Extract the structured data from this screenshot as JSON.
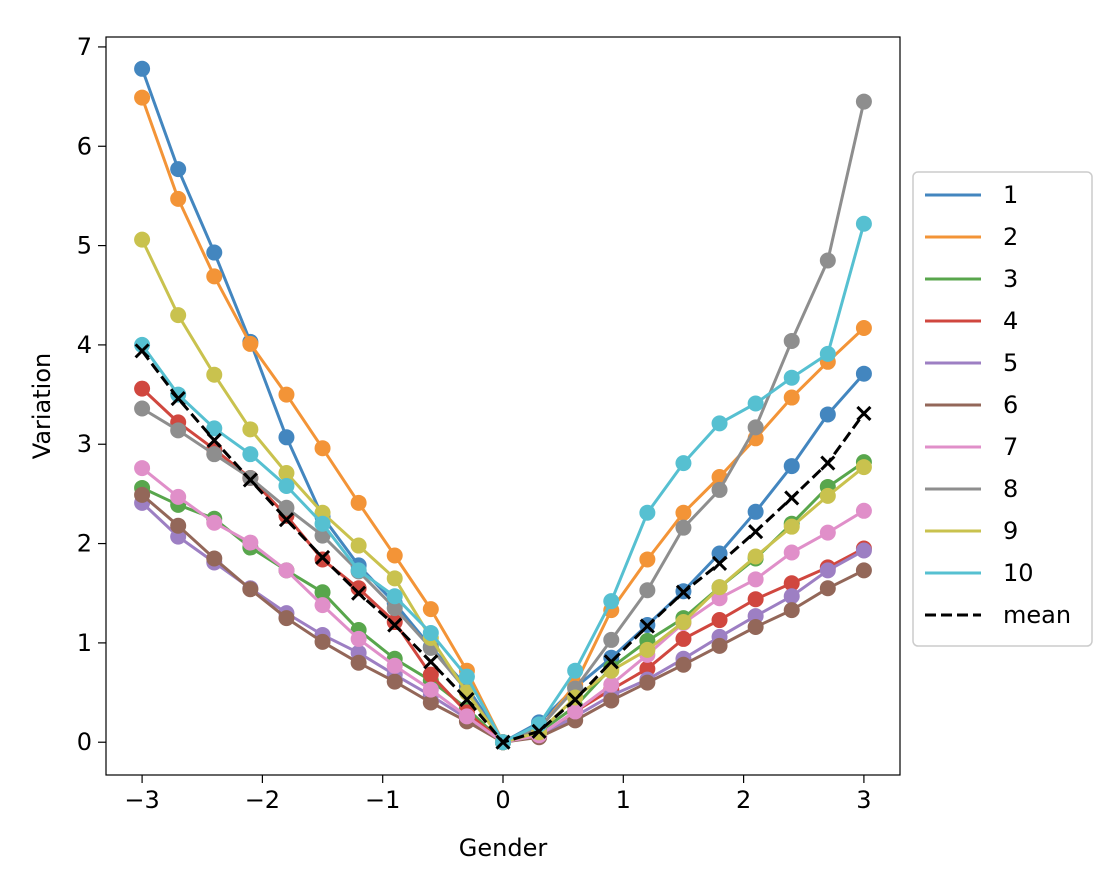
{
  "chart_data": {
    "type": "line",
    "title": "",
    "xlabel": "Gender",
    "ylabel": "Variation",
    "xlim": [
      -3.3,
      3.3
    ],
    "ylim": [
      -0.33,
      7.1
    ],
    "xticks": [
      -3,
      -2,
      -1,
      0,
      1,
      2,
      3
    ],
    "xtick_labels": [
      "−3",
      "−2",
      "−1",
      "0",
      "1",
      "2",
      "3"
    ],
    "yticks": [
      0,
      1,
      2,
      3,
      4,
      5,
      6,
      7
    ],
    "ytick_labels": [
      "0",
      "1",
      "2",
      "3",
      "4",
      "5",
      "6",
      "7"
    ],
    "grid": false,
    "legend_position": "right",
    "x": [
      -3.0,
      -2.7,
      -2.4,
      -2.1,
      -1.8,
      -1.5,
      -1.2,
      -0.9,
      -0.6,
      -0.3,
      0.0,
      0.3,
      0.6,
      0.9,
      1.2,
      1.5,
      1.8,
      2.1,
      2.4,
      2.7,
      3.0
    ],
    "series": [
      {
        "name": "1",
        "color": "#4386bf",
        "marker": "circle",
        "values": [
          6.78,
          5.77,
          4.93,
          4.03,
          3.07,
          2.27,
          1.78,
          1.4,
          0.96,
          0.56,
          0.0,
          0.2,
          0.55,
          0.85,
          1.18,
          1.52,
          1.9,
          2.32,
          2.78,
          3.3,
          3.71
        ]
      },
      {
        "name": "2",
        "color": "#f39437",
        "marker": "circle",
        "values": [
          6.49,
          5.47,
          4.69,
          4.01,
          3.5,
          2.96,
          2.41,
          1.88,
          1.34,
          0.72,
          0.0,
          0.13,
          0.58,
          1.33,
          1.84,
          2.31,
          2.67,
          3.06,
          3.47,
          3.83,
          4.17
        ]
      },
      {
        "name": "3",
        "color": "#58a64c",
        "marker": "circle",
        "values": [
          2.56,
          2.39,
          2.25,
          1.96,
          1.73,
          1.51,
          1.13,
          0.84,
          0.62,
          0.34,
          0.0,
          0.1,
          0.36,
          0.75,
          1.02,
          1.25,
          1.56,
          1.85,
          2.2,
          2.57,
          2.82
        ]
      },
      {
        "name": "4",
        "color": "#d0473f",
        "marker": "circle",
        "values": [
          3.56,
          3.22,
          2.95,
          2.66,
          2.28,
          1.84,
          1.55,
          1.21,
          0.68,
          0.3,
          0.0,
          0.06,
          0.31,
          0.53,
          0.74,
          1.04,
          1.23,
          1.44,
          1.6,
          1.76,
          1.95
        ]
      },
      {
        "name": "5",
        "color": "#9d7fc3",
        "marker": "circle",
        "values": [
          2.41,
          2.07,
          1.81,
          1.55,
          1.3,
          1.08,
          0.9,
          0.68,
          0.47,
          0.24,
          0.0,
          0.06,
          0.26,
          0.47,
          0.63,
          0.84,
          1.06,
          1.27,
          1.47,
          1.73,
          1.93
        ]
      },
      {
        "name": "6",
        "color": "#936759",
        "marker": "circle",
        "values": [
          2.49,
          2.18,
          1.85,
          1.54,
          1.25,
          1.01,
          0.8,
          0.61,
          0.4,
          0.21,
          0.0,
          0.05,
          0.22,
          0.42,
          0.6,
          0.78,
          0.97,
          1.16,
          1.33,
          1.55,
          1.73
        ]
      },
      {
        "name": "7",
        "color": "#e08fc9",
        "marker": "circle",
        "values": [
          2.76,
          2.47,
          2.21,
          2.01,
          1.73,
          1.38,
          1.04,
          0.77,
          0.53,
          0.26,
          0.0,
          0.07,
          0.31,
          0.58,
          0.88,
          1.2,
          1.45,
          1.64,
          1.91,
          2.11,
          2.33
        ]
      },
      {
        "name": "8",
        "color": "#8e8e8e",
        "marker": "circle",
        "values": [
          3.36,
          3.14,
          2.9,
          2.66,
          2.36,
          2.08,
          1.72,
          1.35,
          0.95,
          0.52,
          0.0,
          0.14,
          0.54,
          1.03,
          1.53,
          2.16,
          2.54,
          3.17,
          4.04,
          4.85,
          6.45
        ]
      },
      {
        "name": "9",
        "color": "#c9c24e",
        "marker": "circle",
        "values": [
          5.06,
          4.3,
          3.7,
          3.15,
          2.71,
          2.31,
          1.98,
          1.65,
          1.05,
          0.5,
          0.0,
          0.1,
          0.45,
          0.72,
          0.93,
          1.21,
          1.56,
          1.87,
          2.17,
          2.48,
          2.77
        ]
      },
      {
        "name": "10",
        "color": "#56c0d1",
        "marker": "circle",
        "values": [
          4.0,
          3.5,
          3.16,
          2.9,
          2.58,
          2.2,
          1.73,
          1.47,
          1.1,
          0.66,
          0.0,
          0.18,
          0.72,
          1.42,
          2.31,
          2.81,
          3.21,
          3.41,
          3.67,
          3.91,
          5.22
        ]
      },
      {
        "name": "mean",
        "color": "#000000",
        "marker": "x",
        "dashed": true,
        "values": [
          3.94,
          3.46,
          3.04,
          2.64,
          2.24,
          1.86,
          1.5,
          1.18,
          0.81,
          0.43,
          0.0,
          0.11,
          0.43,
          0.81,
          1.17,
          1.51,
          1.8,
          2.12,
          2.46,
          2.81,
          3.31
        ]
      }
    ]
  }
}
